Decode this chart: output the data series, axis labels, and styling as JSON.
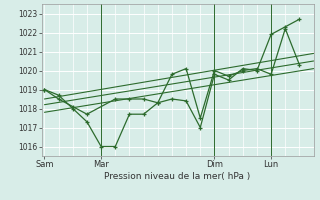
{
  "xlabel": "Pression niveau de la mer( hPa )",
  "bg_color": "#cde8e0",
  "plot_bg_color": "#d8ede8",
  "grid_color": "#ffffff",
  "line_color": "#2d6b2d",
  "xtick_labels": [
    "Sam",
    "Mar",
    "Dim",
    "Lun"
  ],
  "xtick_positions": [
    0,
    2,
    6,
    8
  ],
  "ylim": [
    1015.5,
    1023.5
  ],
  "yticks": [
    1016,
    1017,
    1018,
    1019,
    1020,
    1021,
    1022,
    1023
  ],
  "xlim": [
    -0.1,
    9.5
  ],
  "series1_x": [
    0,
    0.5,
    1.0,
    1.5,
    2.0,
    2.5,
    3.0,
    3.5,
    4.0,
    4.5,
    5.0,
    5.5,
    6.0,
    6.5,
    7.0,
    7.5,
    8.0,
    8.5,
    9.0
  ],
  "series1_y": [
    1019.0,
    1018.7,
    1018.0,
    1017.3,
    1016.0,
    1016.0,
    1017.7,
    1017.7,
    1018.3,
    1018.5,
    1018.4,
    1017.0,
    1019.8,
    1019.5,
    1020.1,
    1020.0,
    1021.9,
    1022.3,
    1022.7
  ],
  "series2_x": [
    0,
    0.5,
    1.0,
    1.5,
    2.5,
    3.0,
    3.5,
    4.0,
    4.5,
    5.0,
    5.5,
    6.0,
    6.5,
    7.0,
    7.5,
    8.0,
    8.5,
    9.0
  ],
  "series2_y": [
    1019.0,
    1018.5,
    1018.1,
    1017.7,
    1018.5,
    1018.5,
    1018.5,
    1018.3,
    1019.8,
    1020.1,
    1017.5,
    1020.0,
    1019.7,
    1020.0,
    1020.1,
    1019.8,
    1022.2,
    1020.3
  ],
  "trend1_x": [
    0,
    9.5
  ],
  "trend1_y": [
    1017.8,
    1020.1
  ],
  "trend2_x": [
    0,
    9.5
  ],
  "trend2_y": [
    1018.2,
    1020.5
  ],
  "trend3_x": [
    0,
    9.5
  ],
  "trend3_y": [
    1018.5,
    1020.9
  ],
  "vline_positions": [
    2,
    6,
    8
  ]
}
